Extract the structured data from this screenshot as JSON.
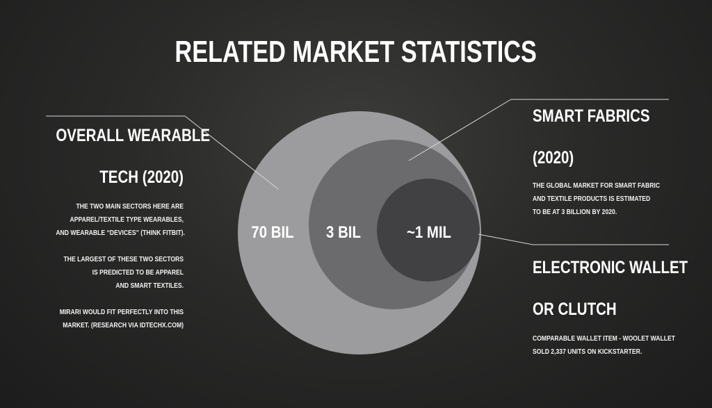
{
  "title": "RELATED MARKET STATISTICS",
  "colors": {
    "outer_circle": "#9c9c9e",
    "middle_circle": "#6b6b6d",
    "inner_circle": "#414143",
    "text": "#ffffff",
    "lines": "#d8d8d8"
  },
  "circles": [
    {
      "label": "70 BIL",
      "name": "Overall Wearable Tech (2020)"
    },
    {
      "label": "3 BIL",
      "name": "Smart Fabrics (2020)"
    },
    {
      "label": "~1 MIL",
      "name": "Electronic Wallet or Clutch"
    }
  ],
  "overall": {
    "heading_line1": "OVERALL WEARABLE",
    "heading_line2": "TECH (2020)",
    "p1_line1": "THE TWO MAIN SECTORS HERE ARE",
    "p1_line2": "APPAREL/TEXTILE TYPE WEARABLES,",
    "p1_line3": "AND WEARABLE “DEVICES” (THINK FITBIT).",
    "p2_line1": "THE LARGEST OF THESE TWO SECTORS",
    "p2_line2": "IS PREDICTED TO BE APPAREL",
    "p2_line3": "AND SMART TEXTILES.",
    "p3_line1": "MIRARI WOULD FIT PERFECTLY INTO THIS",
    "p3_line2": "MARKET. (RESEARCH VIA IDTECHX.COM)"
  },
  "fabrics": {
    "heading_line1": "SMART FABRICS",
    "heading_line2": "(2020)",
    "line1": "THE GLOBAL MARKET FOR SMART FABRIC",
    "line2": "AND TEXTILE PRODUCTS IS ESTIMATED",
    "line3": "TO BE AT 3 BILLION BY 2020."
  },
  "wallet": {
    "heading_line1": "ELECTRONIC WALLET",
    "heading_line2": "OR CLUTCH",
    "line1": "COMPARABLE WALLET ITEM - WOOLET WALLET",
    "line2": "SOLD 2,337 UNITS ON KICKSTARTER."
  }
}
